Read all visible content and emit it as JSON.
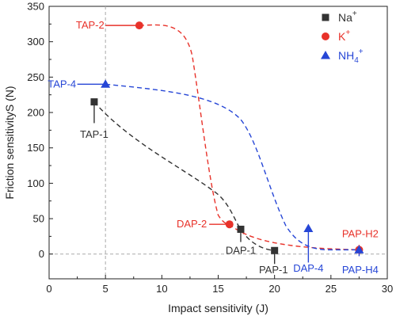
{
  "chart_data": {
    "type": "scatter",
    "xlabel": "Impact sensitivity (J)",
    "ylabel": "Friction sensitivityS (N)",
    "xlim": [
      0,
      30
    ],
    "ylim": [
      -35,
      350
    ],
    "x_ticks": [
      0,
      5,
      10,
      15,
      20,
      25,
      30
    ],
    "y_ticks": [
      0,
      50,
      100,
      150,
      200,
      250,
      300,
      350
    ],
    "grid": "dashed vertical and horizontal reference lines at x = 5 and y = 0",
    "legend_position": "top-right",
    "series": [
      {
        "name_main": "Na",
        "name_sup": "+",
        "color": "#333333",
        "marker": "square",
        "points": [
          {
            "label": "TAP-1",
            "x": 4,
            "y": 215
          },
          {
            "label": "DAP-1",
            "x": 17,
            "y": 35
          },
          {
            "label": "PAP-1",
            "x": 20,
            "y": 5
          }
        ]
      },
      {
        "name_main": "K",
        "name_sup": "+",
        "color": "#e8322a",
        "marker": "circle",
        "points": [
          {
            "label": "TAP-2",
            "x": 8,
            "y": 323
          },
          {
            "label": "DAP-2",
            "x": 16,
            "y": 42
          },
          {
            "label": "PAP-H2",
            "x": 27.5,
            "y": 6
          }
        ]
      },
      {
        "name_main": "NH",
        "name_sub": "4",
        "name_sup": "+",
        "color": "#2646d6",
        "marker": "triangle",
        "points": [
          {
            "label": "TAP-4",
            "x": 5,
            "y": 240
          },
          {
            "label": "DAP-4",
            "x": 23,
            "y": 36
          },
          {
            "label": "PAP-H4",
            "x": 27.5,
            "y": 6
          }
        ]
      }
    ]
  }
}
